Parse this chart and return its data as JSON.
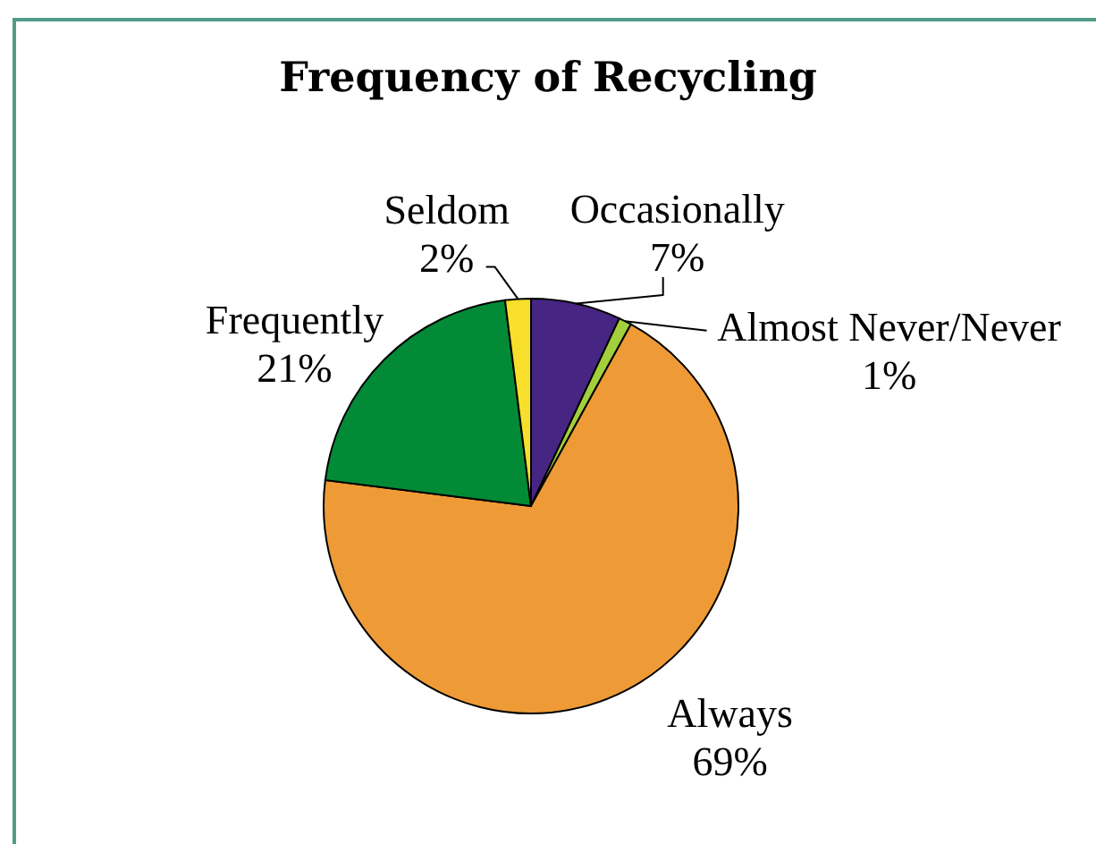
{
  "chart_data": {
    "type": "pie",
    "title": "Frequency of Recycling",
    "categories": [
      "Occasionally",
      "Almost Never/Never",
      "Always",
      "Frequently",
      "Seldom"
    ],
    "values": [
      7,
      1,
      69,
      21,
      2
    ],
    "value_labels": [
      "7%",
      "1%",
      "69%",
      "21%",
      "2%"
    ],
    "colors": [
      "#472583",
      "#a3cf3c",
      "#ee9b37",
      "#038a37",
      "#f7df2b"
    ]
  }
}
